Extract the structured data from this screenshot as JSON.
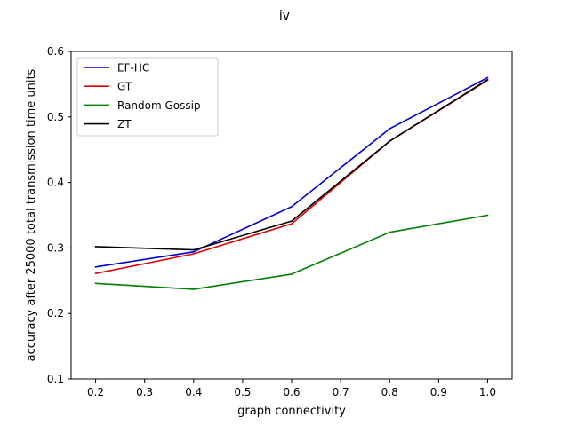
{
  "chart_data": {
    "type": "line",
    "title": "iv",
    "xlabel": "graph connectivity",
    "ylabel": "accuracy after 25000 total transmission time units",
    "xlim": [
      0.15,
      1.05
    ],
    "ylim": [
      0.1,
      0.6
    ],
    "xticks": [
      0.2,
      0.3,
      0.4,
      0.5,
      0.6,
      0.7,
      0.8,
      0.9,
      1.0
    ],
    "xtick_labels": [
      "0.2",
      "0.3",
      "0.4",
      "0.5",
      "0.6",
      "0.7",
      "0.8",
      "0.9",
      "1.0"
    ],
    "yticks": [
      0.1,
      0.2,
      0.3,
      0.4,
      0.5,
      0.6
    ],
    "ytick_labels": [
      "0.1",
      "0.2",
      "0.3",
      "0.4",
      "0.5",
      "0.6"
    ],
    "x": [
      0.2,
      0.4,
      0.6,
      0.8,
      1.0
    ],
    "legend_position": "top-left",
    "grid": false,
    "series": [
      {
        "name": "EF-HC",
        "color": "#0000cc",
        "values": [
          0.271,
          0.294,
          0.363,
          0.482,
          0.56
        ]
      },
      {
        "name": "GT",
        "color": "#e00000",
        "values": [
          0.261,
          0.291,
          0.337,
          0.463,
          0.556
        ]
      },
      {
        "name": "Random Gossip",
        "color": "#007f00",
        "values": [
          0.246,
          0.237,
          0.26,
          0.324,
          0.35
        ]
      },
      {
        "name": "ZT",
        "color": "#000000",
        "values": [
          0.302,
          0.297,
          0.341,
          0.463,
          0.557
        ]
      }
    ]
  }
}
